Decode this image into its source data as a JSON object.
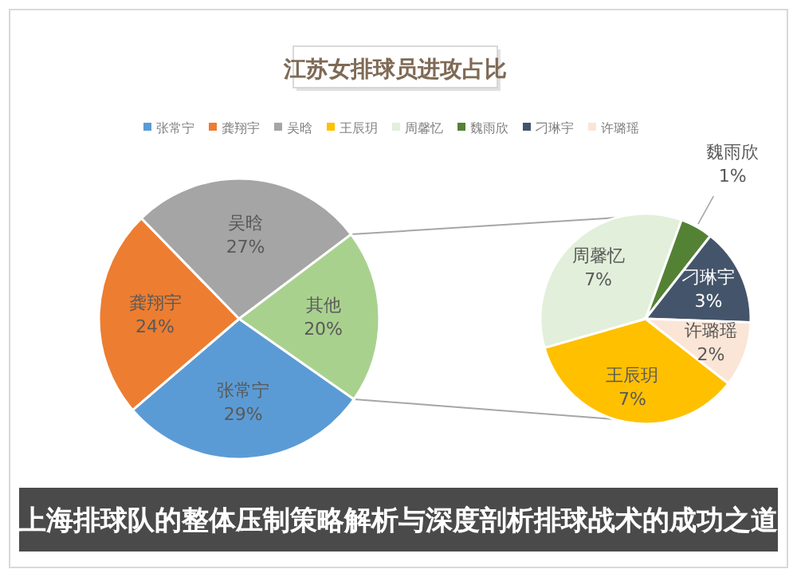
{
  "chart_data": [
    {
      "type": "pie",
      "title": "江苏女排球员进攻占比",
      "legend": "top",
      "categories": [
        "张常宁",
        "龚翔宇",
        "吴晗",
        "其他"
      ],
      "values": [
        29,
        24,
        27,
        20
      ],
      "value_labels": [
        "29%",
        "24%",
        "27%",
        "20%"
      ],
      "colors": [
        "#5b9bd5",
        "#ed7d31",
        "#a5a5a5",
        "#a9d18e"
      ],
      "annotations": [
        "上海排球队的整体压制策略解析与深度剖析排球战术的成功之道"
      ]
    },
    {
      "type": "pie",
      "legend": "top",
      "categories": [
        "王辰玥",
        "周馨忆",
        "魏雨欣",
        "刁琳宇",
        "许璐瑶"
      ],
      "values": [
        7,
        7,
        1,
        3,
        2
      ],
      "value_labels": [
        "7%",
        "7%",
        "1%",
        "3%",
        "2%"
      ],
      "colors": [
        "#ffc000",
        "#e2efda",
        "#548235",
        "#44546a",
        "#fbe5d6"
      ]
    }
  ]
}
